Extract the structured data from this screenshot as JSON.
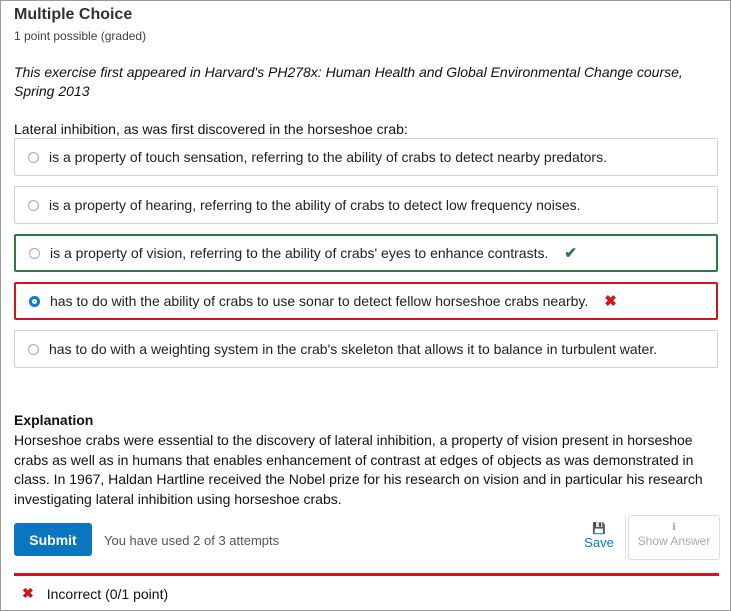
{
  "problem": {
    "title": "Multiple Choice",
    "points": "1 point possible (graded)",
    "note": "This exercise first appeared in Harvard's PH278x: Human Health and Global Environmental Change course, Spring 2013",
    "prompt": "Lateral inhibition, as was first discovered in the horseshoe crab:",
    "options": [
      {
        "label": "is a property of touch sensation, referring to the ability of crabs to detect nearby predators.",
        "selected": false,
        "status": ""
      },
      {
        "label": "is a property of hearing, referring to the ability of crabs to detect low frequency noises.",
        "selected": false,
        "status": ""
      },
      {
        "label": "is a property of vision, referring to the ability of crabs' eyes to enhance contrasts.",
        "selected": false,
        "status": "correct",
        "mark": "✔"
      },
      {
        "label": "has to do with the ability of crabs to use sonar to detect fellow horseshoe crabs nearby.",
        "selected": true,
        "status": "incorrect",
        "mark": "✖"
      },
      {
        "label": "has to do with a weighting system in the crab's skeleton that allows it to balance in turbulent water.",
        "selected": false,
        "status": ""
      }
    ]
  },
  "explanation": {
    "heading": "Explanation",
    "text": "Horseshoe crabs were essential to the discovery of lateral inhibition, a property of vision present in horseshoe crabs as well as in humans that enables enhancement of contrast at edges of objects as was demonstrated in class. In 1967, Haldan Hartline received the Nobel prize for his research on vision and in particular his research investigating lateral inhibition using horseshoe crabs."
  },
  "actions": {
    "submit": "Submit",
    "attempts": "You have used 2 of 3 attempts",
    "save": "Save",
    "save_icon": "💾",
    "show_answer": "Show Answer",
    "show_icon": "ℹ"
  },
  "feedback": {
    "icon": "✖",
    "text": "Incorrect (0/1 point)"
  },
  "colors": {
    "correct": "#2b7a3e",
    "incorrect": "#d0151d",
    "primary": "#0a76c0"
  }
}
